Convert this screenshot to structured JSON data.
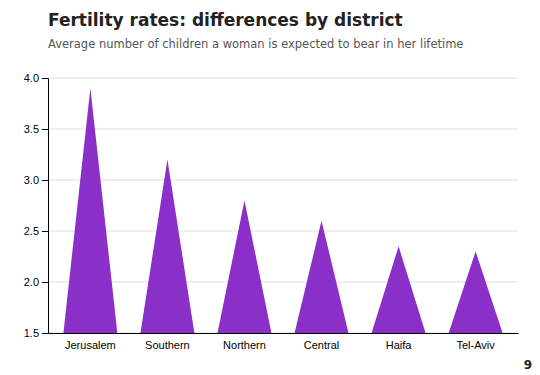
{
  "chart_data": {
    "type": "bar",
    "title": "Fertility rates: differences by district",
    "subtitle": "Average number of children a woman is expected to bear in her lifetime",
    "annotations": [
      "9"
    ],
    "categories": [
      "Jerusalem",
      "Southern",
      "Northern",
      "Central",
      "Haifa",
      "Tel-Aviv"
    ],
    "values": [
      3.9,
      3.2,
      2.8,
      2.6,
      2.35,
      2.3
    ],
    "color": "#8B2FC9",
    "ylim": [
      1.5,
      4.0
    ],
    "yticks": [
      1.5,
      {
        "value": 2.0,
        "label": "2.0"
      },
      2.5,
      {
        "value": 3.0,
        "label": "3.0"
      },
      3.5,
      {
        "value": 4.0,
        "label": "4.0"
      }
    ],
    "grid": true
  }
}
